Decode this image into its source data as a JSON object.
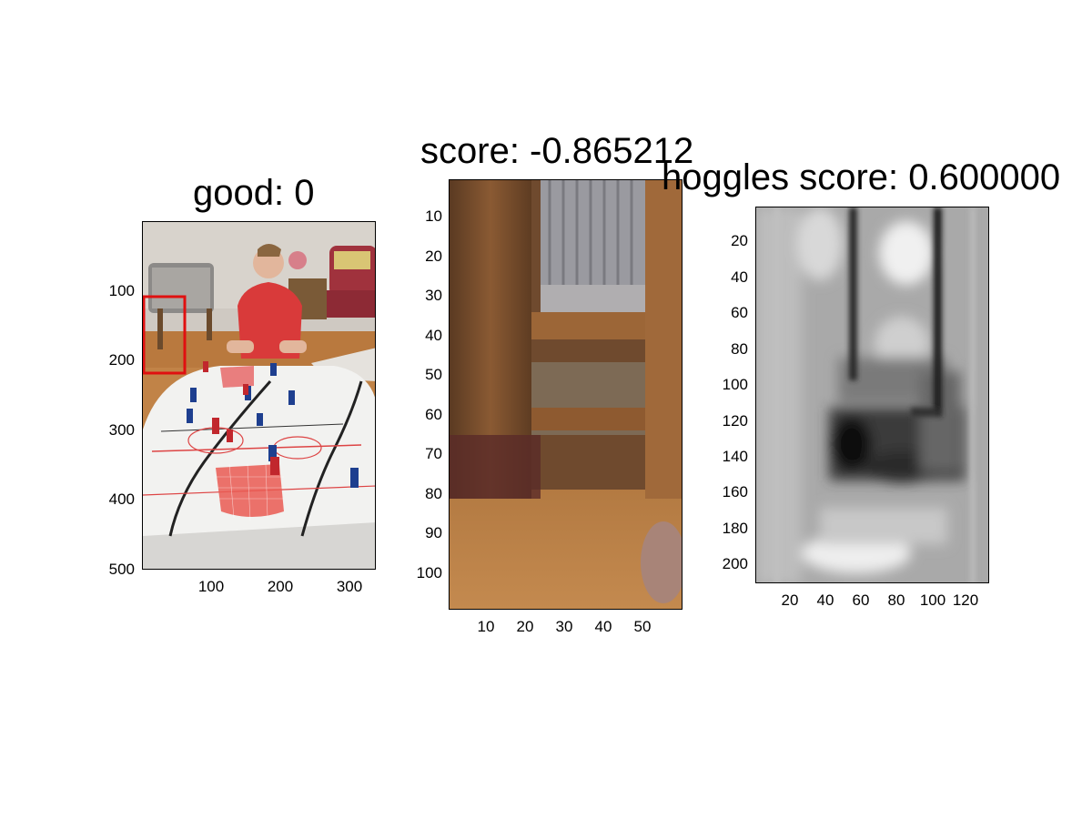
{
  "panels": [
    {
      "title": "good: 0",
      "yticks": [
        "100",
        "200",
        "300",
        "400",
        "500"
      ],
      "xticks": [
        "100",
        "200",
        "300"
      ]
    },
    {
      "title": "score: -0.865212",
      "yticks": [
        "10",
        "20",
        "30",
        "40",
        "50",
        "60",
        "70",
        "80",
        "90",
        "100"
      ],
      "xticks": [
        "10",
        "20",
        "30",
        "40",
        "50"
      ]
    },
    {
      "title": "hoggles score: 0.600000",
      "yticks": [
        "20",
        "40",
        "60",
        "80",
        "100",
        "120",
        "140",
        "160",
        "180",
        "200"
      ],
      "xticks": [
        "20",
        "40",
        "60",
        "80",
        "100",
        "120"
      ]
    }
  ],
  "colors": {
    "bounding_box": "#e01010",
    "floor": "#b9793e",
    "wall": "#cfc9c2",
    "shirt": "#d93a3a"
  }
}
